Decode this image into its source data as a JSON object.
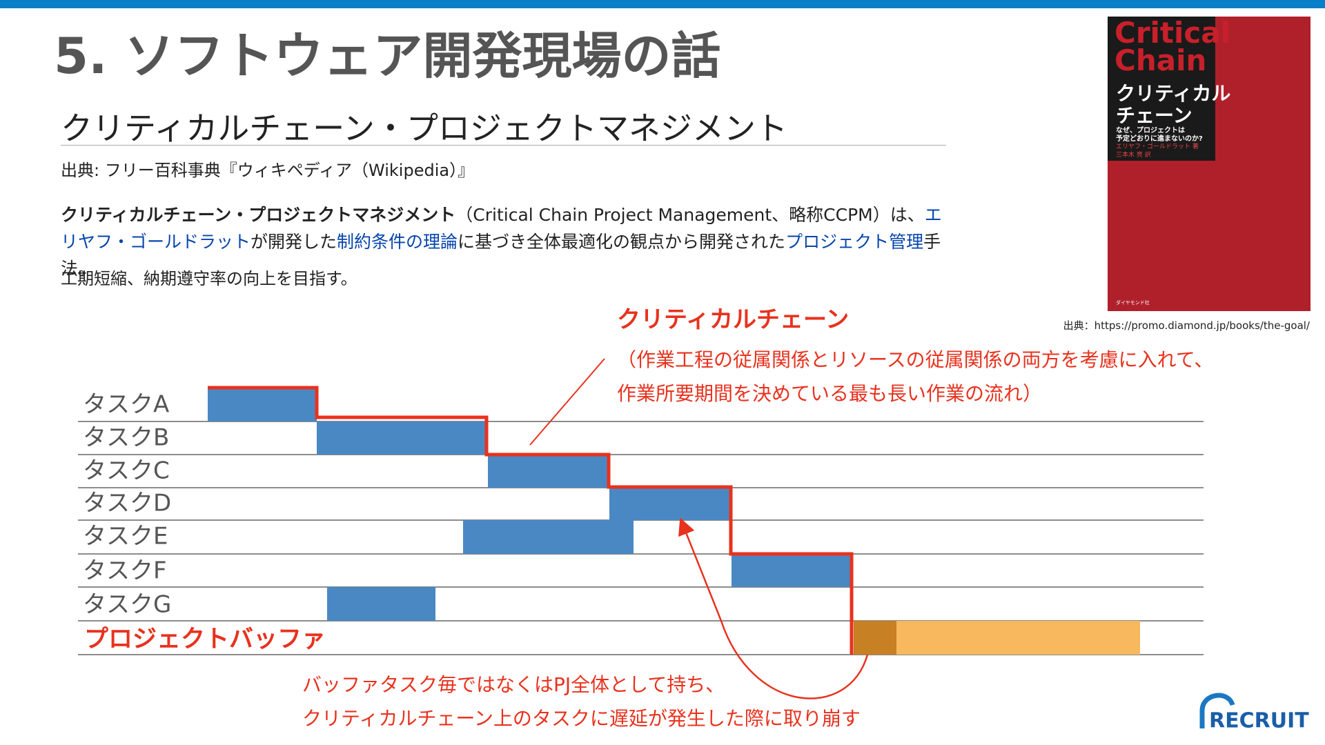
{
  "header": {
    "title": "5. ソフトウェア開発現場の話",
    "subtitle": "クリティカルチェーン・プロジェクトマネジメント"
  },
  "source": "出典: フリー百科事典『ウィキペディア（Wikipedia）』",
  "paragraph": {
    "bold": "クリティカルチェーン・プロジェクトマネジメント",
    "text1": "（Critical Chain Project Management、略称CCPM）は、",
    "link1": "エリヤフ・ゴールドラット",
    "text2": "が開発した",
    "link2": "制約条件の理論",
    "text3": "に基づき全体最適化の観点から開発された",
    "link3": "プロジェクト管理",
    "text4": "手法。"
  },
  "note": "工期短縮、納期遵守率の向上を目指す。",
  "book": {
    "title_en_1": "Critical",
    "title_en_2": "Chain",
    "title_jp_1": "クリティカル",
    "title_jp_2": "チェーン",
    "tagline_1": "なぜ、プロジェクトは",
    "tagline_2": "予定どおりに進まないのか?",
    "author": "エリヤフ・ゴールドラット 著",
    "translator": "三本木 亮 訳",
    "publisher": "ダイヤモンド社",
    "source": "出典：https://promo.diamond.jp/books/the-goal/"
  },
  "diagram": {
    "heading": "クリティカルチェーン",
    "explanation": [
      "（作業工程の従属関係とリソースの従属関係の両方を考慮に入れて、",
      "作業所要期間を決めている最も長い作業の流れ）"
    ],
    "tasks": [
      "タスクA",
      "タスクB",
      "タスクC",
      "タスクD",
      "タスクE",
      "タスクF",
      "タスクG"
    ],
    "buffer_label": "プロジェクトバッファ",
    "buffer_note": [
      "バッファタスク毎ではなくはPJ全体として持ち、",
      "クリティカルチェーン上のタスクに遅延が発生した際に取り崩す"
    ]
  },
  "logo": "RECRUIT"
}
